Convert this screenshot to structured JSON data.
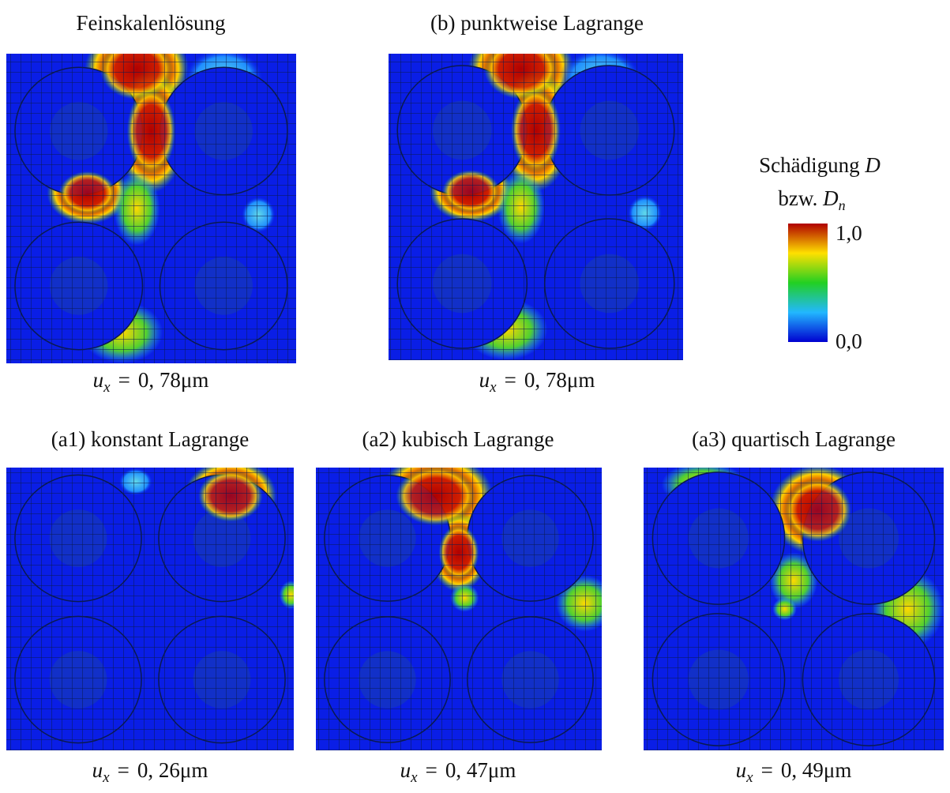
{
  "panels": [
    {
      "title": "Feinskalenlösung",
      "label": {
        "var": "u",
        "sub": "x",
        "relation": "=",
        "value": "0, 78",
        "unit": "μm"
      }
    },
    {
      "title": "(b) punktweise Lagrange",
      "label": {
        "var": "u",
        "sub": "x",
        "relation": "=",
        "value": "0, 78",
        "unit": "μm"
      }
    },
    {
      "title": "(a1) konstant Lagrange",
      "label": {
        "var": "u",
        "sub": "x",
        "relation": "=",
        "value": "0, 26",
        "unit": "μm"
      }
    },
    {
      "title": "(a2) kubisch Lagrange",
      "label": {
        "var": "u",
        "sub": "x",
        "relation": "=",
        "value": "0, 47",
        "unit": "μm"
      }
    },
    {
      "title": "(a3) quartisch Lagrange",
      "label": {
        "var": "u",
        "sub": "x",
        "relation": "=",
        "value": "0, 49",
        "unit": "μm"
      }
    }
  ],
  "legend": {
    "line1": {
      "text": "Schädigung",
      "symbol": "D"
    },
    "line2": {
      "text": "bzw.",
      "symbol": "D",
      "sub": "n"
    },
    "max": "1,0",
    "min": "0,0"
  }
}
